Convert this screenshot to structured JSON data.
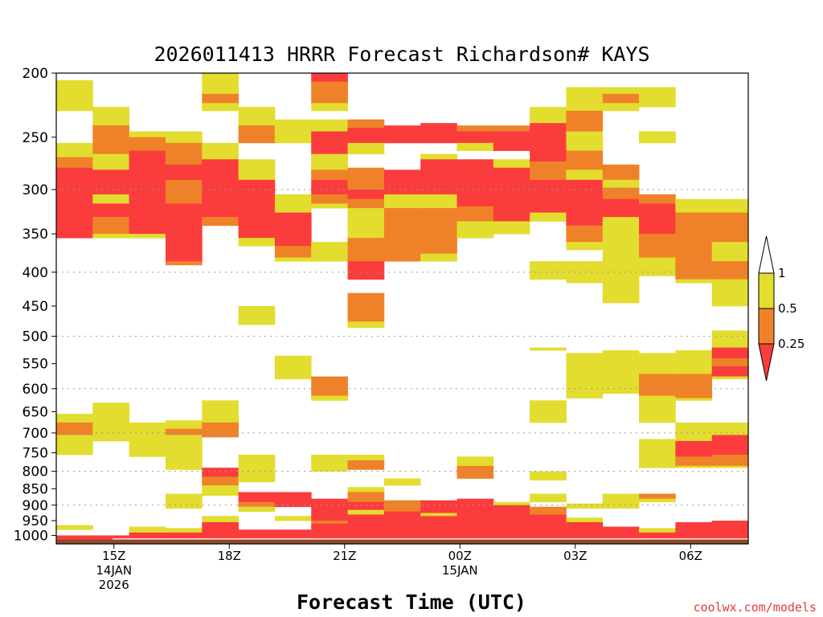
{
  "chart_data": {
    "type": "heatmap",
    "title": "2026011413 HRRR Forecast Richardson# KAYS",
    "xlabel": "Forecast Time (UTC)",
    "ylabel": "",
    "credit": "coolwx.com/models",
    "y_scale": "log (pressure, inverted)",
    "ylim": [
      1030,
      200
    ],
    "y_ticks": [
      200,
      250,
      300,
      350,
      400,
      450,
      500,
      550,
      600,
      650,
      700,
      750,
      800,
      850,
      900,
      950,
      1000
    ],
    "gridlines_at": [
      300,
      400,
      500,
      600,
      700,
      800,
      900
    ],
    "x_hour_range": [
      13.5,
      31.5
    ],
    "x_ticks": [
      {
        "hour": 15,
        "lines": [
          "15Z",
          "14JAN",
          "2026"
        ]
      },
      {
        "hour": 18,
        "lines": [
          "18Z"
        ]
      },
      {
        "hour": 21,
        "lines": [
          "21Z"
        ]
      },
      {
        "hour": 24,
        "lines": [
          "00Z",
          "15JAN"
        ]
      },
      {
        "hour": 27,
        "lines": [
          "03Z"
        ]
      },
      {
        "hour": 30,
        "lines": [
          "06Z"
        ]
      }
    ],
    "colorbar": {
      "labels": [
        "1",
        "0.5",
        "0.25"
      ],
      "colors": {
        "high": "#ffffff",
        "mid": "#e2dd2e",
        "low": "#ef8228",
        "lowest": "#fa3c3c"
      }
    },
    "categories_legend": {
      "Y": "0.5 to 1",
      "O": "0.25 to 0.5",
      "R": "below 0.25"
    },
    "ground_color": "#8b4a2b",
    "surface_pressure": 1015,
    "columns": [
      [
        [
          205,
          228,
          "Y"
        ],
        [
          255,
          268,
          "Y"
        ],
        [
          268,
          278,
          "O"
        ],
        [
          278,
          355,
          "R"
        ],
        [
          655,
          675,
          "Y"
        ],
        [
          675,
          705,
          "O"
        ],
        [
          705,
          755,
          "Y"
        ],
        [
          965,
          980,
          "Y"
        ],
        [
          1000,
          1015,
          "R"
        ]
      ],
      [
        [
          225,
          240,
          "Y"
        ],
        [
          240,
          265,
          "O"
        ],
        [
          265,
          280,
          "Y"
        ],
        [
          280,
          305,
          "R"
        ],
        [
          305,
          315,
          "Y"
        ],
        [
          315,
          330,
          "R"
        ],
        [
          330,
          350,
          "O"
        ],
        [
          350,
          355,
          "Y"
        ],
        [
          630,
          720,
          "Y"
        ],
        [
          1000,
          1015,
          "R"
        ]
      ],
      [
        [
          245,
          250,
          "Y"
        ],
        [
          250,
          262,
          "O"
        ],
        [
          262,
          350,
          "R"
        ],
        [
          350,
          355,
          "Y"
        ],
        [
          675,
          760,
          "Y"
        ],
        [
          970,
          990,
          "Y"
        ],
        [
          990,
          1015,
          "R"
        ]
      ],
      [
        [
          245,
          255,
          "Y"
        ],
        [
          255,
          275,
          "O"
        ],
        [
          275,
          290,
          "R"
        ],
        [
          290,
          315,
          "O"
        ],
        [
          315,
          385,
          "R"
        ],
        [
          385,
          390,
          "O"
        ],
        [
          670,
          690,
          "Y"
        ],
        [
          690,
          705,
          "O"
        ],
        [
          705,
          795,
          "Y"
        ],
        [
          865,
          910,
          "Y"
        ],
        [
          975,
          990,
          "Y"
        ],
        [
          990,
          1015,
          "R"
        ]
      ],
      [
        [
          200,
          215,
          "Y"
        ],
        [
          215,
          222,
          "O"
        ],
        [
          222,
          228,
          "Y"
        ],
        [
          255,
          270,
          "Y"
        ],
        [
          270,
          330,
          "R"
        ],
        [
          330,
          340,
          "O"
        ],
        [
          625,
          675,
          "Y"
        ],
        [
          675,
          710,
          "O"
        ],
        [
          790,
          815,
          "R"
        ],
        [
          815,
          840,
          "O"
        ],
        [
          840,
          870,
          "Y"
        ],
        [
          935,
          955,
          "Y"
        ],
        [
          955,
          1015,
          "R"
        ]
      ],
      [
        [
          225,
          240,
          "Y"
        ],
        [
          240,
          255,
          "O"
        ],
        [
          270,
          290,
          "Y"
        ],
        [
          290,
          355,
          "R"
        ],
        [
          355,
          365,
          "Y"
        ],
        [
          450,
          480,
          "Y"
        ],
        [
          755,
          830,
          "Y"
        ],
        [
          860,
          890,
          "R"
        ],
        [
          890,
          905,
          "O"
        ],
        [
          905,
          920,
          "Y"
        ],
        [
          980,
          1015,
          "R"
        ]
      ],
      [
        [
          235,
          255,
          "Y"
        ],
        [
          305,
          325,
          "Y"
        ],
        [
          325,
          365,
          "R"
        ],
        [
          365,
          380,
          "O"
        ],
        [
          380,
          385,
          "Y"
        ],
        [
          535,
          580,
          "Y"
        ],
        [
          860,
          905,
          "R"
        ],
        [
          935,
          950,
          "Y"
        ],
        [
          980,
          1015,
          "R"
        ]
      ],
      [
        [
          200,
          206,
          "R"
        ],
        [
          206,
          222,
          "O"
        ],
        [
          222,
          228,
          "Y"
        ],
        [
          235,
          245,
          "Y"
        ],
        [
          245,
          265,
          "R"
        ],
        [
          265,
          280,
          "Y"
        ],
        [
          280,
          290,
          "O"
        ],
        [
          290,
          305,
          "R"
        ],
        [
          305,
          315,
          "O"
        ],
        [
          315,
          320,
          "Y"
        ],
        [
          360,
          385,
          "Y"
        ],
        [
          575,
          615,
          "O"
        ],
        [
          615,
          625,
          "Y"
        ],
        [
          755,
          800,
          "Y"
        ],
        [
          880,
          950,
          "R"
        ],
        [
          950,
          960,
          "O"
        ],
        [
          960,
          1015,
          "R"
        ]
      ],
      [
        [
          235,
          242,
          "O"
        ],
        [
          242,
          255,
          "R"
        ],
        [
          255,
          265,
          "Y"
        ],
        [
          278,
          300,
          "O"
        ],
        [
          300,
          310,
          "R"
        ],
        [
          310,
          320,
          "O"
        ],
        [
          320,
          350,
          "Y"
        ],
        [
          350,
          355,
          "Y"
        ],
        [
          355,
          385,
          "O"
        ],
        [
          385,
          410,
          "R"
        ],
        [
          430,
          475,
          "O"
        ],
        [
          475,
          485,
          "Y"
        ],
        [
          755,
          770,
          "Y"
        ],
        [
          770,
          795,
          "O"
        ],
        [
          845,
          860,
          "Y"
        ],
        [
          860,
          890,
          "O"
        ],
        [
          890,
          915,
          "R"
        ],
        [
          915,
          930,
          "Y"
        ],
        [
          930,
          1015,
          "R"
        ]
      ],
      [
        [
          240,
          255,
          "R"
        ],
        [
          280,
          305,
          "R"
        ],
        [
          305,
          320,
          "Y"
        ],
        [
          320,
          385,
          "O"
        ],
        [
          820,
          840,
          "Y"
        ],
        [
          885,
          920,
          "O"
        ],
        [
          920,
          1015,
          "R"
        ]
      ],
      [
        [
          238,
          255,
          "R"
        ],
        [
          265,
          270,
          "Y"
        ],
        [
          270,
          305,
          "R"
        ],
        [
          305,
          320,
          "Y"
        ],
        [
          320,
          375,
          "O"
        ],
        [
          375,
          385,
          "Y"
        ],
        [
          885,
          925,
          "R"
        ],
        [
          925,
          935,
          "Y"
        ],
        [
          935,
          1015,
          "R"
        ]
      ],
      [
        [
          240,
          245,
          "O"
        ],
        [
          245,
          255,
          "R"
        ],
        [
          255,
          262,
          "Y"
        ],
        [
          270,
          318,
          "R"
        ],
        [
          318,
          335,
          "O"
        ],
        [
          335,
          355,
          "Y"
        ],
        [
          760,
          785,
          "Y"
        ],
        [
          785,
          820,
          "O"
        ],
        [
          880,
          925,
          "R"
        ],
        [
          925,
          1015,
          "R"
        ]
      ],
      [
        [
          240,
          245,
          "O"
        ],
        [
          245,
          262,
          "R"
        ],
        [
          270,
          278,
          "Y"
        ],
        [
          278,
          335,
          "R"
        ],
        [
          335,
          350,
          "Y"
        ],
        [
          890,
          900,
          "Y"
        ],
        [
          900,
          1015,
          "R"
        ]
      ],
      [
        [
          225,
          238,
          "Y"
        ],
        [
          238,
          255,
          "R"
        ],
        [
          255,
          272,
          "R"
        ],
        [
          272,
          290,
          "O"
        ],
        [
          290,
          325,
          "R"
        ],
        [
          325,
          335,
          "Y"
        ],
        [
          385,
          410,
          "Y"
        ],
        [
          520,
          525,
          "Y"
        ],
        [
          625,
          675,
          "Y"
        ],
        [
          800,
          825,
          "Y"
        ],
        [
          865,
          890,
          "Y"
        ],
        [
          905,
          930,
          "O"
        ],
        [
          930,
          1015,
          "R"
        ]
      ],
      [
        [
          210,
          228,
          "Y"
        ],
        [
          228,
          245,
          "O"
        ],
        [
          245,
          262,
          "Y"
        ],
        [
          262,
          280,
          "O"
        ],
        [
          280,
          290,
          "Y"
        ],
        [
          290,
          340,
          "R"
        ],
        [
          340,
          360,
          "O"
        ],
        [
          360,
          370,
          "Y"
        ],
        [
          385,
          415,
          "Y"
        ],
        [
          530,
          620,
          "Y"
        ],
        [
          895,
          910,
          "Y"
        ],
        [
          940,
          955,
          "Y"
        ],
        [
          955,
          1015,
          "R"
        ]
      ],
      [
        [
          210,
          215,
          "Y"
        ],
        [
          215,
          222,
          "O"
        ],
        [
          222,
          228,
          "Y"
        ],
        [
          275,
          290,
          "O"
        ],
        [
          290,
          298,
          "Y"
        ],
        [
          298,
          310,
          "O"
        ],
        [
          310,
          330,
          "R"
        ],
        [
          330,
          445,
          "Y"
        ],
        [
          525,
          610,
          "Y"
        ],
        [
          865,
          910,
          "Y"
        ],
        [
          970,
          1015,
          "R"
        ]
      ],
      [
        [
          210,
          225,
          "Y"
        ],
        [
          245,
          255,
          "Y"
        ],
        [
          305,
          315,
          "O"
        ],
        [
          315,
          350,
          "R"
        ],
        [
          350,
          380,
          "O"
        ],
        [
          380,
          405,
          "Y"
        ],
        [
          530,
          570,
          "Y"
        ],
        [
          570,
          615,
          "O"
        ],
        [
          615,
          675,
          "Y"
        ],
        [
          715,
          790,
          "Y"
        ],
        [
          865,
          880,
          "O"
        ],
        [
          880,
          890,
          "Y"
        ],
        [
          975,
          990,
          "Y"
        ],
        [
          990,
          1015,
          "R"
        ]
      ],
      [
        [
          310,
          325,
          "Y"
        ],
        [
          325,
          410,
          "O"
        ],
        [
          410,
          415,
          "Y"
        ],
        [
          525,
          570,
          "Y"
        ],
        [
          570,
          620,
          "O"
        ],
        [
          620,
          625,
          "Y"
        ],
        [
          675,
          720,
          "Y"
        ],
        [
          720,
          760,
          "R"
        ],
        [
          760,
          785,
          "O"
        ],
        [
          785,
          790,
          "Y"
        ],
        [
          955,
          1015,
          "R"
        ]
      ],
      [
        [
          310,
          325,
          "Y"
        ],
        [
          325,
          360,
          "O"
        ],
        [
          360,
          385,
          "Y"
        ],
        [
          385,
          410,
          "O"
        ],
        [
          410,
          450,
          "Y"
        ],
        [
          490,
          520,
          "Y"
        ],
        [
          520,
          540,
          "R"
        ],
        [
          540,
          555,
          "O"
        ],
        [
          555,
          575,
          "R"
        ],
        [
          575,
          580,
          "Y"
        ],
        [
          675,
          705,
          "Y"
        ],
        [
          705,
          755,
          "R"
        ],
        [
          755,
          785,
          "O"
        ],
        [
          785,
          790,
          "Y"
        ],
        [
          950,
          1015,
          "R"
        ]
      ]
    ]
  }
}
